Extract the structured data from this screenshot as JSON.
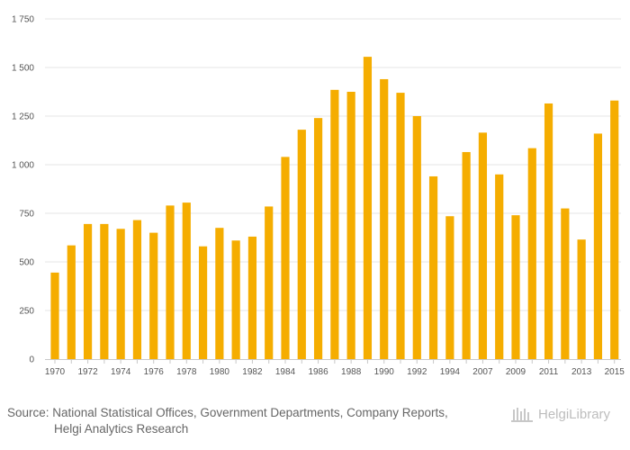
{
  "chart_data": {
    "type": "bar",
    "title": "",
    "xlabel": "",
    "ylabel": "",
    "ylim": [
      0,
      1750
    ],
    "yticks": [
      0,
      250,
      500,
      750,
      1000,
      1250,
      1500,
      1750
    ],
    "ytick_labels": [
      "0",
      "250",
      "500",
      "750",
      "1 000",
      "1 250",
      "1 500",
      "1 750"
    ],
    "categories": [
      "1970",
      "1971",
      "1972",
      "1973",
      "1974",
      "1975",
      "1976",
      "1977",
      "1978",
      "1979",
      "1980",
      "1981",
      "1982",
      "1983",
      "1984",
      "1985",
      "1986",
      "1987",
      "1988",
      "1989",
      "1990",
      "1991",
      "1992",
      "1993",
      "1994",
      "1995",
      "2007",
      "2008",
      "2009",
      "2010",
      "2011",
      "2012",
      "2013",
      "2014",
      "2015"
    ],
    "xtick_labels": [
      "1970",
      "1972",
      "1974",
      "1976",
      "1978",
      "1980",
      "1982",
      "1984",
      "1986",
      "1988",
      "1990",
      "1992",
      "1994",
      "2007",
      "2009",
      "2011",
      "2013",
      "2015"
    ],
    "values": [
      445,
      585,
      695,
      695,
      670,
      715,
      650,
      790,
      805,
      580,
      675,
      610,
      630,
      785,
      1040,
      1180,
      1240,
      1385,
      1375,
      1555,
      1440,
      1370,
      1250,
      940,
      735,
      1065,
      1165,
      950,
      740,
      1085,
      1315,
      775,
      615,
      1160,
      1330
    ],
    "bar_color": "#f5ad00",
    "grid": true
  },
  "footer": {
    "source_line1": "Source: National Statistical Offices, Government Departments, Company Reports,",
    "source_line2": "Helgi Analytics Research",
    "logo_text": "HelgiLibrary",
    "logo_icon": "helgi-logo-icon"
  }
}
